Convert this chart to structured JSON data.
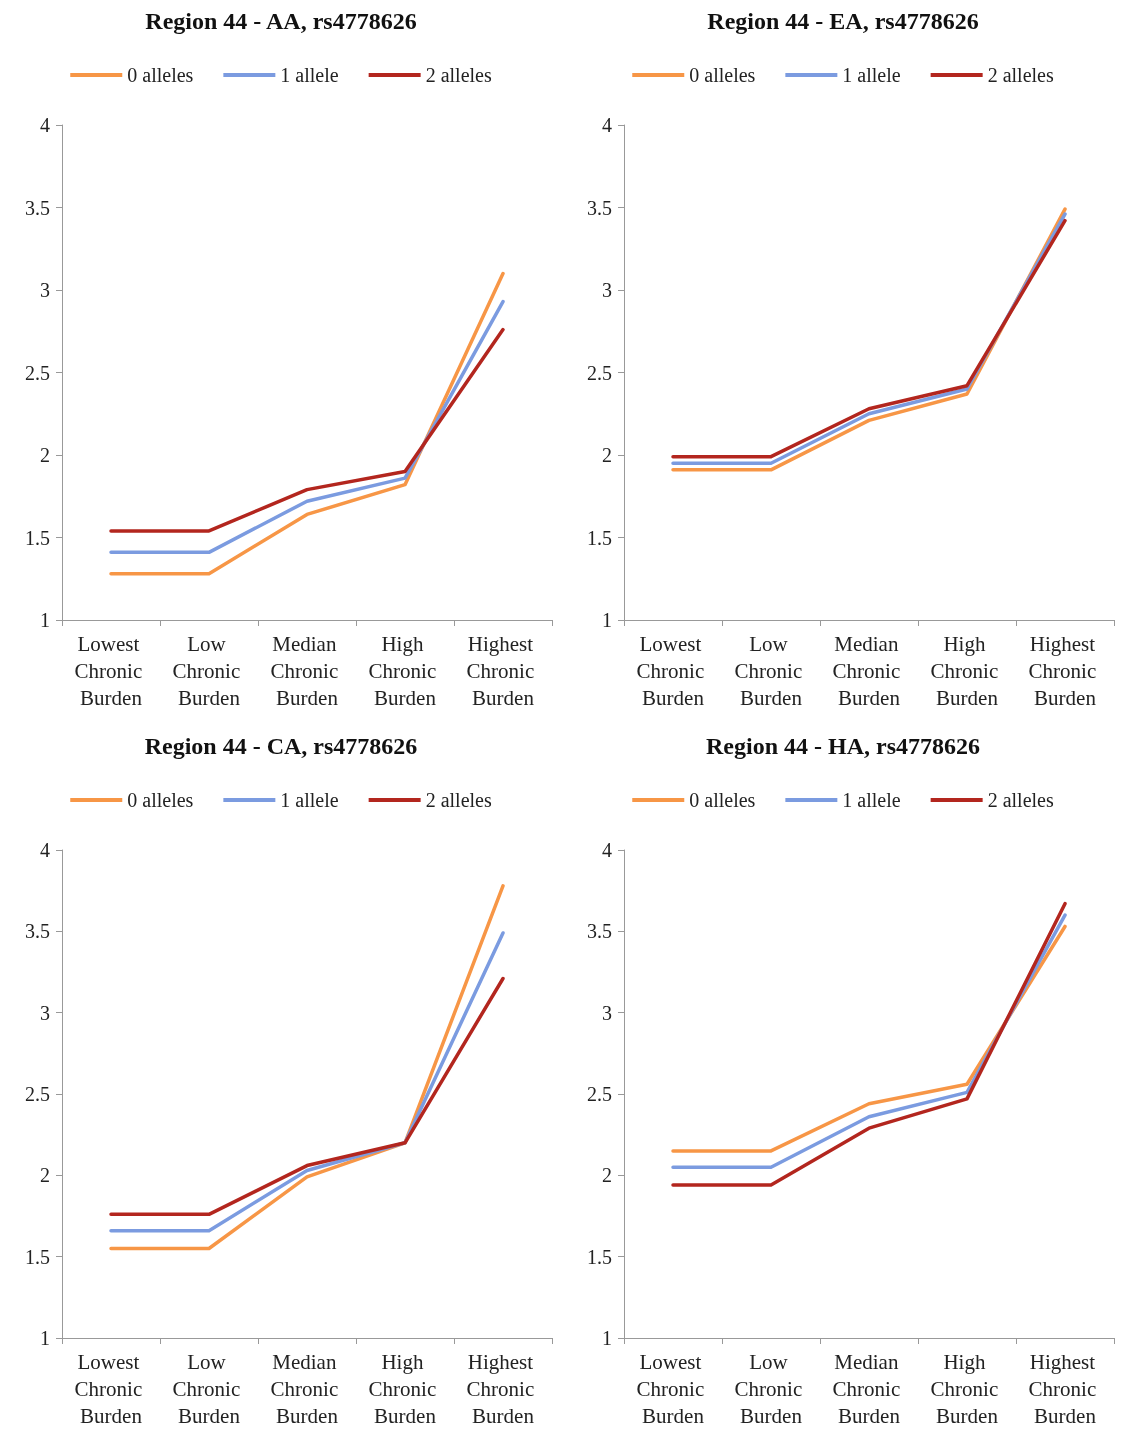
{
  "chart_data": [
    {
      "type": "line",
      "title": "Region 44 - AA, rs4778626",
      "categories": [
        "Lowest Chronic Burden",
        "Low Chronic Burden",
        "Median Chronic Burden",
        "High Chronic Burden",
        "Highest Chronic Burden"
      ],
      "ylim": [
        1,
        4
      ],
      "yticks": [
        1,
        1.5,
        2,
        2.5,
        3,
        3.5,
        4
      ],
      "grid": false,
      "legend": "top",
      "marker": "none",
      "line_style": "solid",
      "series": [
        {
          "name": "0 alleles",
          "color": "#f79646",
          "values": [
            1.28,
            1.28,
            1.64,
            1.82,
            3.1
          ]
        },
        {
          "name": "1 allele",
          "color": "#7b9be0",
          "values": [
            1.41,
            1.41,
            1.72,
            1.86,
            2.93
          ]
        },
        {
          "name": "2 alleles",
          "color": "#b3261e",
          "values": [
            1.54,
            1.54,
            1.79,
            1.9,
            2.76
          ]
        }
      ]
    },
    {
      "type": "line",
      "title": "Region 44 - EA, rs4778626",
      "categories": [
        "Lowest Chronic Burden",
        "Low Chronic Burden",
        "Median Chronic Burden",
        "High Chronic Burden",
        "Highest Chronic Burden"
      ],
      "ylim": [
        1,
        4
      ],
      "yticks": [
        1,
        1.5,
        2,
        2.5,
        3,
        3.5,
        4
      ],
      "grid": false,
      "legend": "top",
      "marker": "none",
      "line_style": "solid",
      "series": [
        {
          "name": "0 alleles",
          "color": "#f79646",
          "values": [
            1.91,
            1.91,
            2.21,
            2.37,
            3.49
          ]
        },
        {
          "name": "1 allele",
          "color": "#7b9be0",
          "values": [
            1.95,
            1.95,
            2.25,
            2.4,
            3.46
          ]
        },
        {
          "name": "2 alleles",
          "color": "#b3261e",
          "values": [
            1.99,
            1.99,
            2.28,
            2.42,
            3.42
          ]
        }
      ]
    },
    {
      "type": "line",
      "title": "Region 44 - CA, rs4778626",
      "categories": [
        "Lowest Chronic Burden",
        "Low Chronic Burden",
        "Median Chronic Burden",
        "High Chronic Burden",
        "Highest Chronic Burden"
      ],
      "ylim": [
        1,
        4
      ],
      "yticks": [
        1,
        1.5,
        2,
        2.5,
        3,
        3.5,
        4
      ],
      "grid": false,
      "legend": "top",
      "marker": "none",
      "line_style": "solid",
      "series": [
        {
          "name": "0 alleles",
          "color": "#f79646",
          "values": [
            1.55,
            1.55,
            1.99,
            2.2,
            3.78
          ]
        },
        {
          "name": "1 allele",
          "color": "#7b9be0",
          "values": [
            1.66,
            1.66,
            2.03,
            2.2,
            3.49
          ]
        },
        {
          "name": "2 alleles",
          "color": "#b3261e",
          "values": [
            1.76,
            1.76,
            2.06,
            2.2,
            3.21
          ]
        }
      ]
    },
    {
      "type": "line",
      "title": "Region 44 - HA, rs4778626",
      "categories": [
        "Lowest Chronic Burden",
        "Low Chronic Burden",
        "Median Chronic Burden",
        "High Chronic Burden",
        "Highest Chronic Burden"
      ],
      "ylim": [
        1,
        4
      ],
      "yticks": [
        1,
        1.5,
        2,
        2.5,
        3,
        3.5,
        4
      ],
      "grid": false,
      "legend": "top",
      "marker": "none",
      "line_style": "solid",
      "series": [
        {
          "name": "0 alleles",
          "color": "#f79646",
          "values": [
            2.15,
            2.15,
            2.44,
            2.56,
            3.53
          ]
        },
        {
          "name": "1 allele",
          "color": "#7b9be0",
          "values": [
            2.05,
            2.05,
            2.36,
            2.51,
            3.6
          ]
        },
        {
          "name": "2 alleles",
          "color": "#b3261e",
          "values": [
            1.94,
            1.94,
            2.29,
            2.47,
            3.67
          ]
        }
      ]
    }
  ]
}
